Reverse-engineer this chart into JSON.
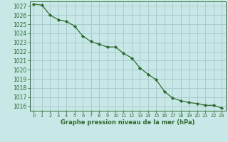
{
  "x": [
    0,
    1,
    2,
    3,
    4,
    5,
    6,
    7,
    8,
    9,
    10,
    11,
    12,
    13,
    14,
    15,
    16,
    17,
    18,
    19,
    20,
    21,
    22,
    23
  ],
  "y": [
    1027.2,
    1027.1,
    1026.0,
    1025.5,
    1025.3,
    1024.8,
    1023.7,
    1023.1,
    1022.8,
    1022.5,
    1022.5,
    1021.8,
    1021.3,
    1020.2,
    1019.5,
    1018.9,
    1017.6,
    1016.9,
    1016.6,
    1016.4,
    1016.3,
    1016.1,
    1016.1,
    1015.8
  ],
  "line_color": "#2d6a2d",
  "marker": "D",
  "marker_size": 2.2,
  "bg_color": "#c8e8e8",
  "grid_color": "#aacccc",
  "xlabel": "Graphe pression niveau de la mer (hPa)",
  "xlabel_color": "#2d6a2d",
  "tick_color": "#2d6a2d",
  "ylim": [
    1015.5,
    1027.5
  ],
  "xlim": [
    -0.5,
    23.5
  ],
  "yticks": [
    1016,
    1017,
    1018,
    1019,
    1020,
    1021,
    1022,
    1023,
    1024,
    1025,
    1026,
    1027
  ],
  "xticks": [
    0,
    1,
    2,
    3,
    4,
    5,
    6,
    7,
    8,
    9,
    10,
    11,
    12,
    13,
    14,
    15,
    16,
    17,
    18,
    19,
    20,
    21,
    22,
    23
  ],
  "ytick_fontsize": 5.5,
  "xtick_fontsize": 4.8,
  "xlabel_fontsize": 6.0,
  "linewidth": 0.9
}
